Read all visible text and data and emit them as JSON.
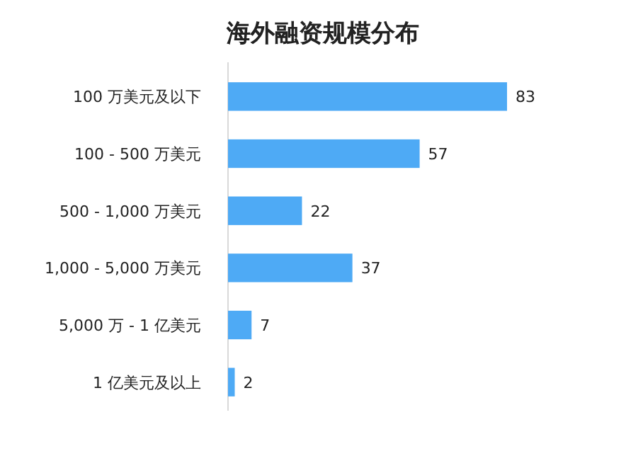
{
  "chart_data": {
    "type": "bar",
    "orientation": "horizontal",
    "title": "海外融资规模分布",
    "categories": [
      "100 万美元及以下",
      "100 - 500 万美元",
      "500 - 1,000 万美元",
      "1,000 - 5,000 万美元",
      "5,000 万 - 1 亿美元",
      "1 亿美元及以上"
    ],
    "values": [
      83,
      57,
      22,
      37,
      7,
      2
    ],
    "color": "#4eaaf5",
    "data_labels": true
  }
}
